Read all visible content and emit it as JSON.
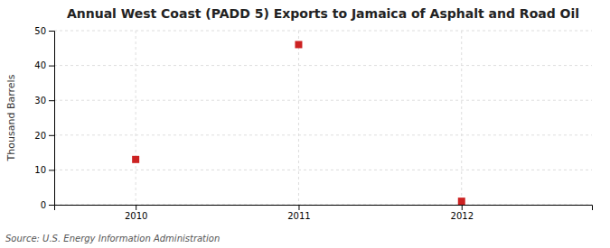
{
  "chart_data": {
    "type": "scatter",
    "title": "Annual West Coast (PADD 5) Exports to Jamaica of Asphalt and Road Oil",
    "y_label": "Thousand Barrels",
    "source": "Source: U.S. Energy Information Administration",
    "x": [
      2010,
      2011,
      2012
    ],
    "values": [
      13,
      46,
      1
    ],
    "color": "#cc2222",
    "marker": "square",
    "xlim": [
      2009.5,
      2012.8
    ],
    "ylim": [
      0,
      50
    ],
    "xticks": [
      2010,
      2011,
      2012
    ],
    "yticks": [
      0,
      10,
      20,
      30,
      40,
      50
    ],
    "grid": true
  }
}
